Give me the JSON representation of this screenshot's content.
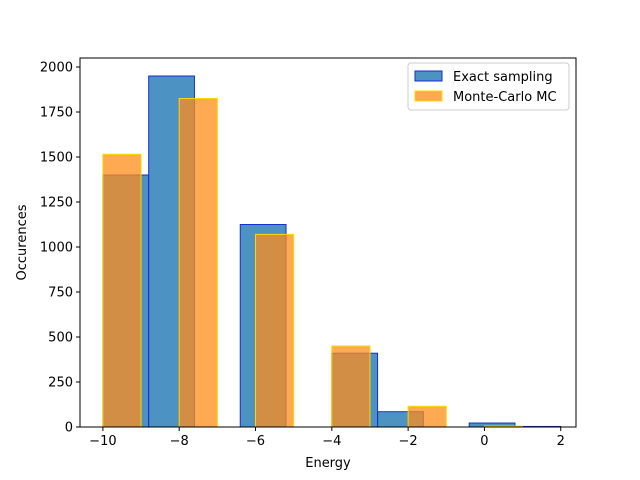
{
  "chart_data": {
    "type": "bar",
    "xlabel": "Energy",
    "ylabel": "Occurences",
    "xlim": [
      -10.6,
      2.4
    ],
    "ylim": [
      0,
      2050
    ],
    "xticks": [
      -10,
      -8,
      -6,
      -4,
      -2,
      0,
      2
    ],
    "xtick_labels": [
      "−10",
      "−8",
      "−6",
      "−4",
      "−2",
      "0",
      "2"
    ],
    "yticks": [
      0,
      250,
      500,
      750,
      1000,
      1250,
      1500,
      1750,
      2000
    ],
    "ytick_labels": [
      "0",
      "250",
      "500",
      "750",
      "1000",
      "1250",
      "1500",
      "1750",
      "2000"
    ],
    "legend_position": "upper right",
    "series": [
      {
        "name": "Exact sampling",
        "fill": "#1f77b4",
        "edge": "#1a2ecc",
        "opacity": 0.8,
        "bins": [
          {
            "x0": -10.0,
            "x1": -8.8,
            "value": 1400
          },
          {
            "x0": -8.8,
            "x1": -7.6,
            "value": 1950
          },
          {
            "x0": -7.6,
            "x1": -6.4,
            "value": 0
          },
          {
            "x0": -6.4,
            "x1": -5.2,
            "value": 1125
          },
          {
            "x0": -5.2,
            "x1": -4.0,
            "value": 0
          },
          {
            "x0": -4.0,
            "x1": -2.8,
            "value": 410
          },
          {
            "x0": -2.8,
            "x1": -1.6,
            "value": 85
          },
          {
            "x0": -1.6,
            "x1": -0.4,
            "value": 0
          },
          {
            "x0": -0.4,
            "x1": 0.8,
            "value": 22
          },
          {
            "x0": 0.8,
            "x1": 2.0,
            "value": 3
          }
        ]
      },
      {
        "name": "Monte-Carlo MC",
        "fill": "#ff8c1a",
        "edge": "#ffd700",
        "opacity": 0.75,
        "bins": [
          {
            "x0": -10.0,
            "x1": -9.0,
            "value": 1515
          },
          {
            "x0": -8.0,
            "x1": -7.0,
            "value": 1825
          },
          {
            "x0": -6.0,
            "x1": -5.0,
            "value": 1070
          },
          {
            "x0": -4.0,
            "x1": -3.0,
            "value": 450
          },
          {
            "x0": -2.0,
            "x1": -1.0,
            "value": 115
          },
          {
            "x0": 0.0,
            "x1": 1.0,
            "value": 5
          }
        ]
      }
    ]
  }
}
